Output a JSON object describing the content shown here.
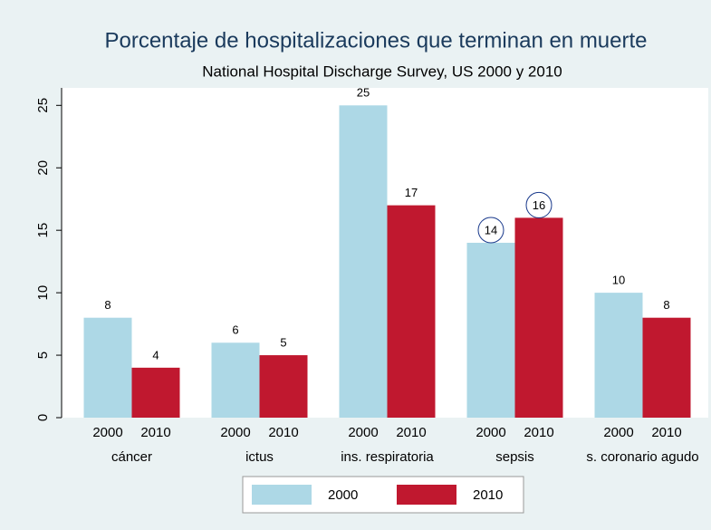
{
  "chart_data": {
    "type": "grouped-bar",
    "title": "Porcentaje de hospitalizaciones que terminan en muerte",
    "subtitle": "National Hospital Discharge Survey, US 2000 y 2010",
    "categories": [
      "cáncer",
      "ictus",
      "ins. respiratoria",
      "sepsis",
      "s. coronario agudo"
    ],
    "series": [
      {
        "name": "2000",
        "color": "#add8e6",
        "values": [
          8,
          6,
          25,
          14,
          10
        ]
      },
      {
        "name": "2010",
        "color": "#c0182f",
        "values": [
          4,
          5,
          17,
          16,
          8
        ]
      }
    ],
    "ylim": [
      0,
      26.4
    ],
    "yticks": [
      0,
      5,
      10,
      15,
      20,
      25
    ],
    "grid": false,
    "highlight": "sepsis",
    "legend": "bottom"
  }
}
